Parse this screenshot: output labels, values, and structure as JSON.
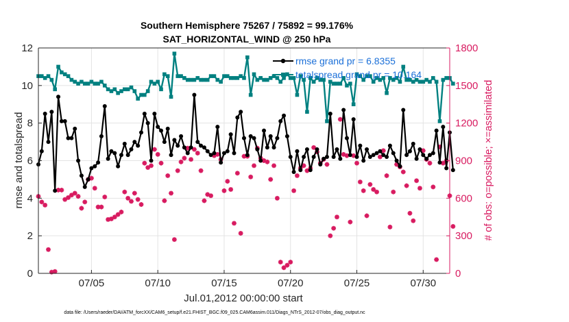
{
  "chart_data": {
    "type": "line",
    "title": "Southern Hemisphere 75267 / 75892 = 99.176%",
    "subtitle": "SAT_HORIZONTAL_WIND @ 250 hPa",
    "xlabel": "Jul.01,2012 00:00:00 start",
    "ylabel": "rmse and totalspread",
    "y2label": "# of obs: o=possible; ×=assimilated",
    "footnote": "data file: /Users/raeder/DAI/ATM_forcXX/CAM6_setup/f.e21.FHIST_BGC.f09_025.CAM6assim.011/Diags_NTrS_2012-07/obs_diag_output.nc",
    "xlim": [
      1.0,
      32.0
    ],
    "ylim": [
      0,
      12
    ],
    "y2lim": [
      0,
      1800
    ],
    "xticks": [
      5,
      10,
      15,
      20,
      25,
      30
    ],
    "xticklabels": [
      "07/05",
      "07/10",
      "07/15",
      "07/20",
      "07/25",
      "07/30"
    ],
    "yticks": [
      0,
      2,
      4,
      6,
      8,
      10,
      12
    ],
    "yticklabels": [
      "0",
      "2",
      "4",
      "6",
      "8",
      "10",
      "12"
    ],
    "y2ticks": [
      0,
      300,
      600,
      900,
      1200,
      1500,
      1800
    ],
    "y2ticklabels": [
      "0",
      "300",
      "600",
      "900",
      "1200",
      "1500",
      "1800"
    ],
    "legend": [
      {
        "label": "rmse grand pr = 6.8355",
        "color": "#000000"
      },
      {
        "label": "totalspread grand pr = 10.164",
        "color": "#008080"
      }
    ],
    "colors": {
      "rmse": "#000000",
      "spread": "#008080",
      "obs": "#d81b60",
      "legend_text": "#1a6fd8"
    },
    "x_start": 1.0,
    "x_step": 0.25,
    "series": [
      {
        "name": "rmse",
        "axis": "left",
        "values": [
          5.8,
          6.5,
          8.5,
          7.0,
          8.6,
          4.4,
          9.4,
          8.1,
          8.1,
          7.2,
          7.2,
          7.7,
          6.0,
          5.2,
          4.6,
          5.0,
          5.6,
          5.7,
          5.9,
          7.3,
          8.9,
          6.1,
          6.5,
          6.4,
          5.7,
          6.3,
          6.9,
          6.3,
          6.6,
          7.0,
          6.8,
          7.5,
          8.5,
          8.0,
          6.0,
          8.5,
          7.8,
          7.6,
          7.0,
          7.7,
          6.3,
          7.1,
          6.8,
          7.3,
          6.7,
          6.4,
          6.7,
          9.5,
          7.0,
          6.8,
          6.7,
          6.5,
          6.3,
          6.4,
          7.8,
          5.9,
          6.4,
          6.5,
          7.4,
          6.4,
          8.3,
          8.6,
          7.2,
          6.3,
          7.3,
          7.2,
          6.6,
          6.0,
          7.6,
          6.7,
          7.3,
          6.7,
          7.2,
          8.1,
          8.4,
          7.3,
          6.2,
          5.4,
          6.5,
          5.5,
          6.2,
          6.6,
          5.5,
          6.2,
          6.6,
          5.8,
          6.1,
          6.2,
          8.5,
          6.2,
          6.6,
          6.1,
          8.7,
          7.2,
          6.3,
          8.2,
          6.2,
          6.8,
          6.0,
          6.6,
          6.2,
          6.3,
          6.4,
          6.5,
          6.3,
          6.2,
          6.8,
          6.4,
          6.0,
          5.7,
          8.7,
          6.3,
          6.5,
          6.9,
          6.1,
          6.6,
          6.3,
          6.1,
          6.3,
          6.4,
          7.6,
          5.9,
          7.8,
          5.6,
          7.5,
          5.5
        ]
      },
      {
        "name": "totalspread",
        "axis": "left",
        "values": [
          10.5,
          10.5,
          10.4,
          10.5,
          10.3,
          9.8,
          11.0,
          10.7,
          10.6,
          10.5,
          10.3,
          10.2,
          10.1,
          10.2,
          10.1,
          10.1,
          10.2,
          10.1,
          10.1,
          10.2,
          10.0,
          9.8,
          9.7,
          9.8,
          9.6,
          9.7,
          9.8,
          9.8,
          9.9,
          9.7,
          9.3,
          9.5,
          9.5,
          9.7,
          10.2,
          10.1,
          10.2,
          9.8,
          10.6,
          10.5,
          9.4,
          11.7,
          10.5,
          10.5,
          10.4,
          10.3,
          10.3,
          10.3,
          10.4,
          10.3,
          10.3,
          10.3,
          10.5,
          10.5,
          10.3,
          10.2,
          10.5,
          10.5,
          10.4,
          10.4,
          10.4,
          10.5,
          10.4,
          11.5,
          9.5,
          10.6,
          10.3,
          10.4,
          10.3,
          10.3,
          10.4,
          10.5,
          10.4,
          10.2,
          10.4,
          10.6,
          10.4,
          10.4,
          9.5,
          10.5,
          10.3,
          8.6,
          10.4,
          10.2,
          10.4,
          10.3,
          10.3,
          8.1,
          10.2,
          10.1,
          10.1,
          10.1,
          10.4,
          10.0,
          10.1,
          9.0,
          10.6,
          10.5,
          10.3,
          10.5,
          10.5,
          10.2,
          10.4,
          10.3,
          10.4,
          9.6,
          10.4,
          10.3,
          10.4,
          10.2,
          11.0,
          10.3,
          10.3,
          10.2,
          10.3,
          10.2,
          10.2,
          10.3,
          10.2,
          10.4,
          10.2,
          8.1,
          10.3,
          10.4,
          10.4,
          10.1
        ]
      },
      {
        "name": "obs_assimilated",
        "axis": "right",
        "values": [
          615,
          570,
          545,
          190,
          10,
          15,
          665,
          665,
          590,
          605,
          625,
          640,
          615,
          520,
          570,
          750,
          760,
          680,
          530,
          530,
          610,
          430,
          435,
          450,
          470,
          490,
          650,
          600,
          575,
          640,
          590,
          550,
          880,
          845,
          860,
          990,
          950,
          880,
          580,
          780,
          640,
          270,
          820,
          890,
          920,
          1000,
          910,
          990,
          960,
          820,
          580,
          630,
          620,
          940,
          950,
          910,
          660,
          735,
          670,
          400,
          800,
          320,
          935,
          935,
          770,
          860,
          1000,
          920,
          900,
          890,
          750,
          860,
          600,
          90,
          45,
          65,
          90,
          660,
          780,
          840,
          860,
          820,
          840,
          1005,
          970,
          880,
          910,
          870,
          300,
          360,
          450,
          1230,
          950,
          940,
          410,
          940,
          880,
          730,
          660,
          460,
          710,
          670,
          650,
          930,
          980,
          780,
          370,
          650,
          870,
          850,
          810,
          700,
          480,
          420,
          740,
          680,
          980,
          910,
          880,
          690,
          110,
          1010,
          880,
          900,
          620,
          375
        ]
      }
    ]
  }
}
